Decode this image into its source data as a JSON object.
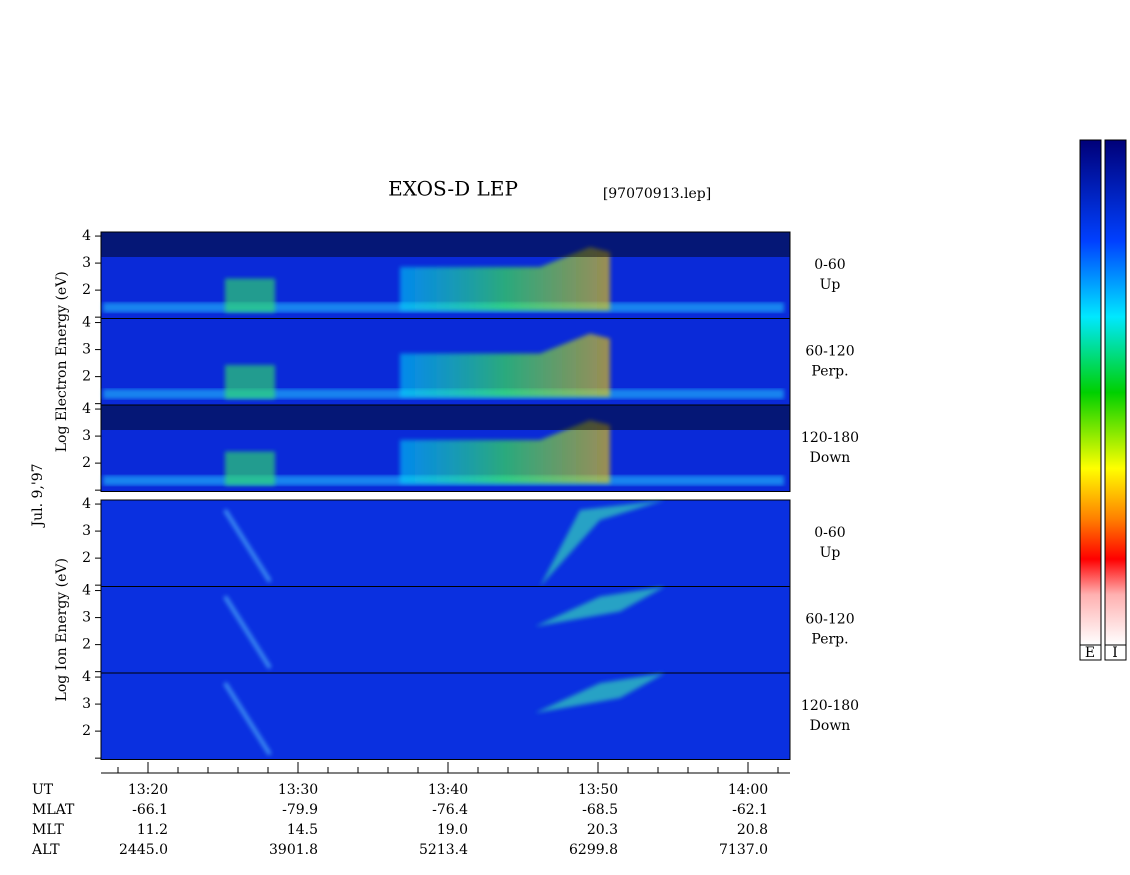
{
  "chart_data": {
    "type": "spectrogram",
    "title": "EXOS-D LEP",
    "subtitle": "[97070913.lep]",
    "date_label": "Jul. 9,'97",
    "ylim": [
      0.95,
      4.15
    ],
    "yticks": [
      {
        "value": 1,
        "label": ""
      },
      2,
      3,
      4
    ],
    "groups": [
      {
        "ylabel": "Log  Electron  Energy (eV)",
        "panels": [
          {
            "label": "0-60",
            "sublabel": "Up"
          },
          {
            "label": "60-120",
            "sublabel": "Perp."
          },
          {
            "label": "120-180",
            "sublabel": "Down"
          }
        ]
      },
      {
        "ylabel": "Log  Ion  Energy (eV)",
        "panels": [
          {
            "label": "0-60",
            "sublabel": "Up"
          },
          {
            "label": "60-120",
            "sublabel": "Perp."
          },
          {
            "label": "120-180",
            "sublabel": "Down"
          }
        ]
      }
    ],
    "x_label": "UT",
    "x_labels": [
      "13:20",
      "13:30",
      "13:40",
      "13:50",
      "14:00"
    ],
    "orbit": [
      {
        "name": "MLAT",
        "values": [
          "-66.1",
          "-79.9",
          "-76.4",
          "-68.5",
          "-62.1"
        ]
      },
      {
        "name": "MLT",
        "values": [
          "11.2",
          "14.5",
          "19.0",
          "20.3",
          "20.8"
        ]
      },
      {
        "name": "ALT",
        "values": [
          "2445.0",
          "3901.8",
          "5213.4",
          "6299.8",
          "7137.0"
        ]
      }
    ],
    "colorbar_labels": [
      "E",
      "I"
    ]
  }
}
